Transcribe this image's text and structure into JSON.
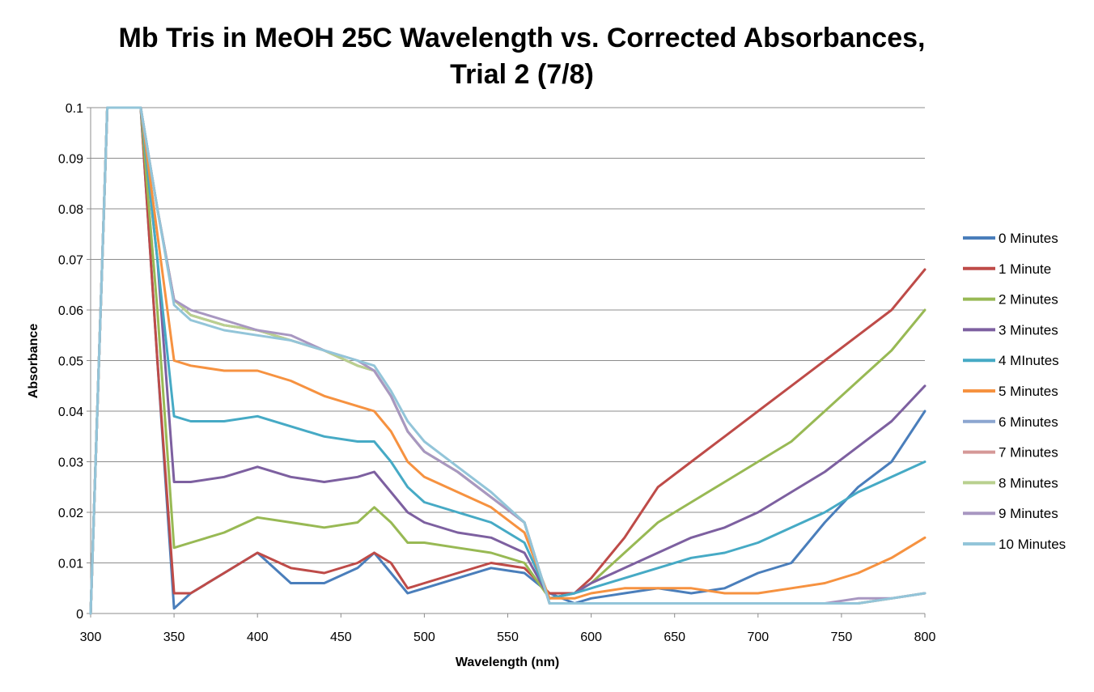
{
  "chart_data": {
    "type": "line",
    "title_lines": [
      "Mb Tris in MeOH 25C Wavelength vs. Corrected Absorbances,",
      "Trial 2 (7/8)"
    ],
    "xlabel": "Wavelength (nm)",
    "ylabel": "Absorbance",
    "xlim": [
      300,
      800
    ],
    "ylim": [
      0,
      0.1
    ],
    "x_ticks": [
      "300",
      "350",
      "400",
      "450",
      "500",
      "550",
      "600",
      "650",
      "700",
      "750",
      "800"
    ],
    "y_ticks": [
      "0",
      "0.01",
      "0.02",
      "0.03",
      "0.04",
      "0.05",
      "0.06",
      "0.07",
      "0.08",
      "0.09",
      "0.1"
    ],
    "grid": "horizontal",
    "legend_position": "right",
    "x": [
      300,
      310,
      320,
      330,
      340,
      350,
      360,
      380,
      400,
      420,
      440,
      460,
      470,
      480,
      490,
      500,
      520,
      540,
      560,
      575,
      590,
      600,
      620,
      640,
      660,
      680,
      700,
      720,
      740,
      760,
      780,
      800
    ],
    "series": [
      {
        "name": "0 Minutes",
        "color": "#4a7ebb",
        "values": [
          0,
          0.1,
          0.1,
          0.1,
          0.05,
          0.001,
          0.004,
          0.008,
          0.012,
          0.006,
          0.006,
          0.009,
          0.012,
          0.008,
          0.004,
          0.005,
          0.007,
          0.009,
          0.008,
          0.004,
          0.002,
          0.003,
          0.004,
          0.005,
          0.004,
          0.005,
          0.008,
          0.01,
          0.018,
          0.025,
          0.03,
          0.04
        ]
      },
      {
        "name": "1 Minute",
        "color": "#be4b48",
        "values": [
          0,
          0.1,
          0.1,
          0.1,
          0.05,
          0.004,
          0.004,
          0.008,
          0.012,
          0.009,
          0.008,
          0.01,
          0.012,
          0.01,
          0.005,
          0.006,
          0.008,
          0.01,
          0.009,
          0.004,
          0.004,
          0.007,
          0.015,
          0.025,
          0.03,
          0.035,
          0.04,
          0.045,
          0.05,
          0.055,
          0.06,
          0.068
        ]
      },
      {
        "name": "2 Minutes",
        "color": "#98b954",
        "values": [
          0,
          0.1,
          0.1,
          0.1,
          0.06,
          0.013,
          0.014,
          0.016,
          0.019,
          0.018,
          0.017,
          0.018,
          0.021,
          0.018,
          0.014,
          0.014,
          0.013,
          0.012,
          0.01,
          0.003,
          0.004,
          0.006,
          0.012,
          0.018,
          0.022,
          0.026,
          0.03,
          0.034,
          0.04,
          0.046,
          0.052,
          0.06
        ]
      },
      {
        "name": "3 Minutes",
        "color": "#7d60a0",
        "values": [
          0,
          0.1,
          0.1,
          0.1,
          0.07,
          0.026,
          0.026,
          0.027,
          0.029,
          0.027,
          0.026,
          0.027,
          0.028,
          0.024,
          0.02,
          0.018,
          0.016,
          0.015,
          0.012,
          0.003,
          0.004,
          0.006,
          0.009,
          0.012,
          0.015,
          0.017,
          0.02,
          0.024,
          0.028,
          0.033,
          0.038,
          0.045
        ]
      },
      {
        "name": "4 MInutes",
        "color": "#46aac5",
        "values": [
          0,
          0.1,
          0.1,
          0.1,
          0.07,
          0.039,
          0.038,
          0.038,
          0.039,
          0.037,
          0.035,
          0.034,
          0.034,
          0.03,
          0.025,
          0.022,
          0.02,
          0.018,
          0.014,
          0.003,
          0.004,
          0.005,
          0.007,
          0.009,
          0.011,
          0.012,
          0.014,
          0.017,
          0.02,
          0.024,
          0.027,
          0.03
        ]
      },
      {
        "name": "5 Minutes",
        "color": "#f69240",
        "values": [
          0,
          0.1,
          0.1,
          0.1,
          0.075,
          0.05,
          0.049,
          0.048,
          0.048,
          0.046,
          0.043,
          0.041,
          0.04,
          0.036,
          0.03,
          0.027,
          0.024,
          0.021,
          0.016,
          0.003,
          0.003,
          0.004,
          0.005,
          0.005,
          0.005,
          0.004,
          0.004,
          0.005,
          0.006,
          0.008,
          0.011,
          0.015
        ]
      },
      {
        "name": "6 Minutes",
        "color": "#8ca6d0",
        "values": [
          0,
          0.1,
          0.1,
          0.1,
          0.08,
          0.062,
          0.059,
          0.057,
          0.056,
          0.054,
          0.052,
          0.049,
          0.048,
          0.043,
          0.036,
          0.032,
          0.028,
          0.023,
          0.018,
          0.002,
          0.002,
          0.002,
          0.002,
          0.002,
          0.002,
          0.002,
          0.002,
          0.002,
          0.002,
          0.002,
          0.003,
          0.004
        ]
      },
      {
        "name": "7 Minutes",
        "color": "#d59897",
        "values": [
          0,
          0.1,
          0.1,
          0.1,
          0.08,
          0.062,
          0.059,
          0.057,
          0.056,
          0.054,
          0.052,
          0.049,
          0.048,
          0.043,
          0.036,
          0.032,
          0.028,
          0.023,
          0.018,
          0.002,
          0.002,
          0.002,
          0.002,
          0.002,
          0.002,
          0.002,
          0.002,
          0.002,
          0.002,
          0.002,
          0.003,
          0.004
        ]
      },
      {
        "name": "8 Minutes",
        "color": "#b9d08f",
        "values": [
          0,
          0.1,
          0.1,
          0.1,
          0.08,
          0.062,
          0.059,
          0.057,
          0.056,
          0.054,
          0.052,
          0.049,
          0.048,
          0.043,
          0.036,
          0.032,
          0.028,
          0.023,
          0.018,
          0.002,
          0.002,
          0.002,
          0.002,
          0.002,
          0.002,
          0.002,
          0.002,
          0.002,
          0.002,
          0.002,
          0.003,
          0.004
        ]
      },
      {
        "name": "9 Minutes",
        "color": "#a897c1",
        "values": [
          0,
          0.1,
          0.1,
          0.1,
          0.08,
          0.062,
          0.06,
          0.058,
          0.056,
          0.055,
          0.052,
          0.05,
          0.048,
          0.043,
          0.036,
          0.032,
          0.028,
          0.023,
          0.018,
          0.002,
          0.002,
          0.002,
          0.002,
          0.002,
          0.002,
          0.002,
          0.002,
          0.002,
          0.002,
          0.003,
          0.003,
          0.004
        ]
      },
      {
        "name": "10 Minutes",
        "color": "#93c5d9",
        "values": [
          0,
          0.1,
          0.1,
          0.1,
          0.08,
          0.061,
          0.058,
          0.056,
          0.055,
          0.054,
          0.052,
          0.05,
          0.049,
          0.044,
          0.038,
          0.034,
          0.029,
          0.024,
          0.018,
          0.002,
          0.002,
          0.002,
          0.002,
          0.002,
          0.002,
          0.002,
          0.002,
          0.002,
          0.002,
          0.002,
          0.003,
          0.004
        ]
      }
    ]
  }
}
